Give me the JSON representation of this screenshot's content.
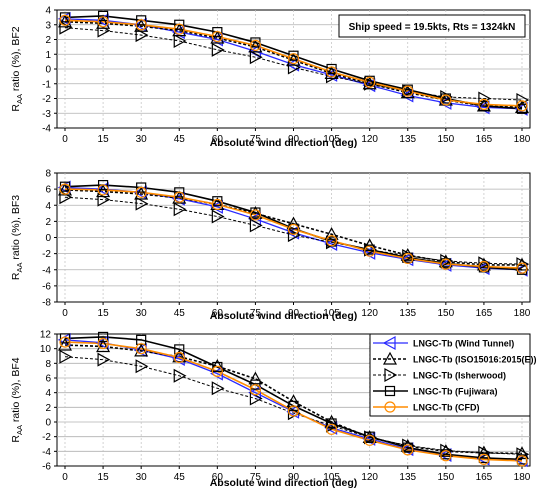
{
  "chart_data": [
    {
      "type": "line",
      "ylabel_main": "R",
      "ylabel_sub": "AA",
      "ylabel_rest": " ratio (%), BF2",
      "xlabel": "Absolute wind direction (deg)",
      "x": [
        0,
        15,
        30,
        45,
        60,
        75,
        90,
        105,
        120,
        135,
        150,
        165,
        180
      ],
      "ylim": [
        -4,
        4
      ],
      "yticks": [
        4,
        3,
        2,
        1,
        0,
        -1,
        -2,
        -3,
        -4
      ],
      "grid": true,
      "annotation": "Ship speed = 19.5kts, Rts = 1324kN",
      "series": [
        {
          "name": "LNGC-Tb (Wind Tunnel)",
          "values": [
            3.4,
            3.3,
            3.0,
            2.5,
            2.0,
            1.2,
            0.3,
            -0.4,
            -1.1,
            -1.8,
            -2.3,
            -2.6,
            -2.7
          ]
        },
        {
          "name": "LNGC-Tb (ISO15016:2015(E))",
          "values": [
            3.2,
            3.1,
            2.9,
            2.6,
            2.1,
            1.5,
            0.6,
            -0.3,
            -1.0,
            -1.6,
            -2.1,
            -2.5,
            -2.6
          ]
        },
        {
          "name": "LNGC-Tb (Isherwood)",
          "values": [
            2.8,
            2.6,
            2.3,
            1.9,
            1.3,
            0.8,
            0.1,
            -0.5,
            -1.0,
            -1.5,
            -1.9,
            -2.0,
            -2.1
          ]
        },
        {
          "name": "LNGC-Tb (Fujiwara)",
          "values": [
            3.5,
            3.6,
            3.3,
            3.0,
            2.5,
            1.8,
            0.9,
            0.0,
            -0.8,
            -1.4,
            -2.0,
            -2.5,
            -2.7
          ]
        },
        {
          "name": "LNGC-Tb (CFD)",
          "values": [
            3.3,
            3.2,
            3.0,
            2.7,
            2.2,
            1.6,
            0.7,
            -0.2,
            -0.9,
            -1.5,
            -2.1,
            -2.4,
            -2.5
          ]
        }
      ]
    },
    {
      "type": "line",
      "ylabel_main": "R",
      "ylabel_sub": "AA",
      "ylabel_rest": " ratio (%), BF3",
      "xlabel": "Absolute wind direction (deg)",
      "x": [
        0,
        15,
        30,
        45,
        60,
        75,
        90,
        105,
        120,
        135,
        150,
        165,
        180
      ],
      "ylim": [
        -8,
        8
      ],
      "yticks": [
        8,
        6,
        4,
        2,
        0,
        -2,
        -4,
        -6,
        -8
      ],
      "grid": true,
      "series": [
        {
          "name": "LNGC-Tb (Wind Tunnel)",
          "values": [
            6.2,
            6.0,
            5.6,
            4.8,
            3.8,
            2.3,
            0.6,
            -0.8,
            -1.9,
            -2.7,
            -3.4,
            -3.8,
            -4.0
          ]
        },
        {
          "name": "LNGC-Tb (ISO15016:2015(E))",
          "values": [
            5.9,
            5.7,
            5.4,
            4.9,
            4.1,
            3.0,
            1.7,
            0.4,
            -1.0,
            -2.2,
            -3.0,
            -3.4,
            -3.4
          ]
        },
        {
          "name": "LNGC-Tb (Isherwood)",
          "values": [
            5.0,
            4.7,
            4.2,
            3.5,
            2.6,
            1.5,
            0.3,
            -0.6,
            -1.5,
            -2.3,
            -2.9,
            -3.2,
            -3.3
          ]
        },
        {
          "name": "LNGC-Tb (Fujiwara)",
          "values": [
            6.3,
            6.5,
            6.2,
            5.6,
            4.5,
            3.1,
            1.1,
            -0.5,
            -1.5,
            -2.5,
            -3.2,
            -3.7,
            -4.0
          ]
        },
        {
          "name": "LNGC-Tb (CFD)",
          "values": [
            6.0,
            5.9,
            5.6,
            5.0,
            4.1,
            2.8,
            1.0,
            -0.4,
            -1.7,
            -2.6,
            -3.3,
            -3.6,
            -3.8
          ]
        }
      ]
    },
    {
      "type": "line",
      "ylabel_main": "R",
      "ylabel_sub": "AA",
      "ylabel_rest": " ratio (%), BF4",
      "xlabel": "Absolute wind direction (deg)",
      "x": [
        0,
        15,
        30,
        45,
        60,
        75,
        90,
        105,
        120,
        135,
        150,
        165,
        180
      ],
      "ylim": [
        -6,
        12
      ],
      "yticks": [
        12,
        10,
        8,
        6,
        4,
        2,
        0,
        -2,
        -4,
        -6
      ],
      "grid": true,
      "legend_position": "top-right",
      "series": [
        {
          "name": "LNGC-Tb (Wind Tunnel)",
          "values": [
            11.2,
            10.8,
            9.8,
            8.6,
            6.6,
            4.0,
            1.4,
            -0.8,
            -2.3,
            -3.7,
            -4.5,
            -5.0,
            -5.2
          ]
        },
        {
          "name": "LNGC-Tb (ISO15016:2015(E))",
          "values": [
            10.5,
            10.3,
            9.7,
            8.9,
            7.6,
            5.9,
            2.8,
            0.0,
            -2.1,
            -3.3,
            -4.0,
            -4.2,
            -4.3
          ]
        },
        {
          "name": "LNGC-Tb (Isherwood)",
          "values": [
            8.9,
            8.5,
            7.6,
            6.3,
            4.6,
            3.2,
            1.2,
            -0.5,
            -2.1,
            -3.2,
            -3.9,
            -4.2,
            -4.4
          ]
        },
        {
          "name": "LNGC-Tb (Fujiwara)",
          "values": [
            11.4,
            11.6,
            11.2,
            9.9,
            7.5,
            5.1,
            2.2,
            -0.2,
            -2.0,
            -3.5,
            -4.4,
            -4.9,
            -5.1
          ]
        },
        {
          "name": "LNGC-Tb (CFD)",
          "values": [
            10.9,
            10.7,
            10.0,
            8.8,
            6.9,
            4.4,
            1.5,
            -1.0,
            -2.5,
            -3.8,
            -4.6,
            -5.1,
            -5.3
          ]
        }
      ]
    }
  ],
  "series_styles": [
    {
      "color": "#2a2aff",
      "marker": "triangle-left-icon",
      "dash": "none",
      "width": 1.3
    },
    {
      "color": "#000000",
      "marker": "triangle-up-icon",
      "dash": "3,2",
      "width": 1.6
    },
    {
      "color": "#000000",
      "marker": "triangle-right-icon",
      "dash": "3,2",
      "width": 1.0
    },
    {
      "color": "#000000",
      "marker": "square-icon",
      "dash": "none",
      "width": 1.6
    },
    {
      "color": "#ff8c00",
      "marker": "circle-icon",
      "dash": "none",
      "width": 1.6
    }
  ]
}
